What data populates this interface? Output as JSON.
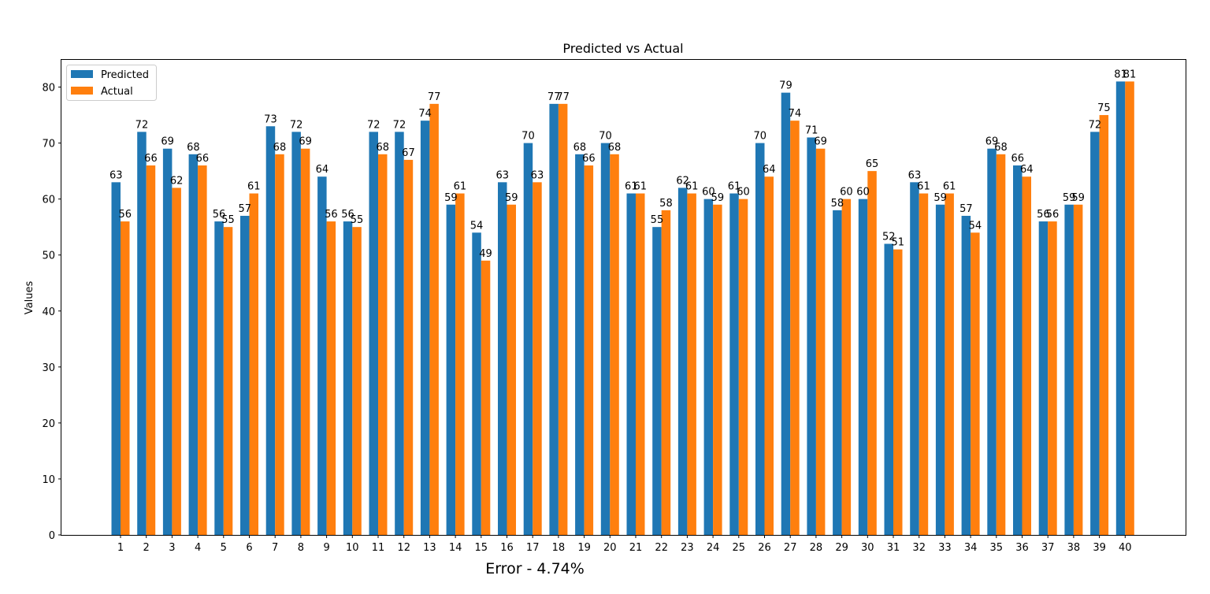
{
  "chart_data": {
    "type": "bar",
    "title": "Predicted vs Actual",
    "xlabel": "",
    "ylabel": "Values",
    "ylim": [
      0,
      85
    ],
    "yticks": [
      0,
      10,
      20,
      30,
      40,
      50,
      60,
      70,
      80
    ],
    "categories": [
      "1",
      "2",
      "3",
      "4",
      "5",
      "6",
      "7",
      "8",
      "9",
      "10",
      "11",
      "12",
      "13",
      "14",
      "15",
      "16",
      "17",
      "18",
      "19",
      "20",
      "21",
      "22",
      "23",
      "24",
      "25",
      "26",
      "27",
      "28",
      "29",
      "30",
      "31",
      "32",
      "33",
      "34",
      "35",
      "36",
      "37",
      "38",
      "39",
      "40"
    ],
    "series": [
      {
        "name": "Predicted",
        "color": "#1f77b4",
        "values": [
          63,
          72,
          69,
          68,
          56,
          57,
          73,
          72,
          64,
          56,
          72,
          72,
          74,
          59,
          54,
          63,
          70,
          77,
          68,
          70,
          61,
          55,
          62,
          60,
          61,
          70,
          79,
          71,
          58,
          60,
          52,
          63,
          59,
          57,
          69,
          66,
          56,
          59,
          72,
          81
        ]
      },
      {
        "name": "Actual",
        "color": "#ff7f0e",
        "values": [
          56,
          66,
          62,
          66,
          55,
          61,
          68,
          69,
          56,
          55,
          68,
          67,
          77,
          61,
          49,
          59,
          63,
          77,
          66,
          68,
          61,
          58,
          61,
          59,
          60,
          64,
          74,
          69,
          60,
          65,
          51,
          61,
          61,
          54,
          68,
          64,
          56,
          59,
          75,
          81
        ]
      }
    ],
    "legend_position": "top-left",
    "grid": false,
    "annotation": "Error - 4.74%"
  }
}
